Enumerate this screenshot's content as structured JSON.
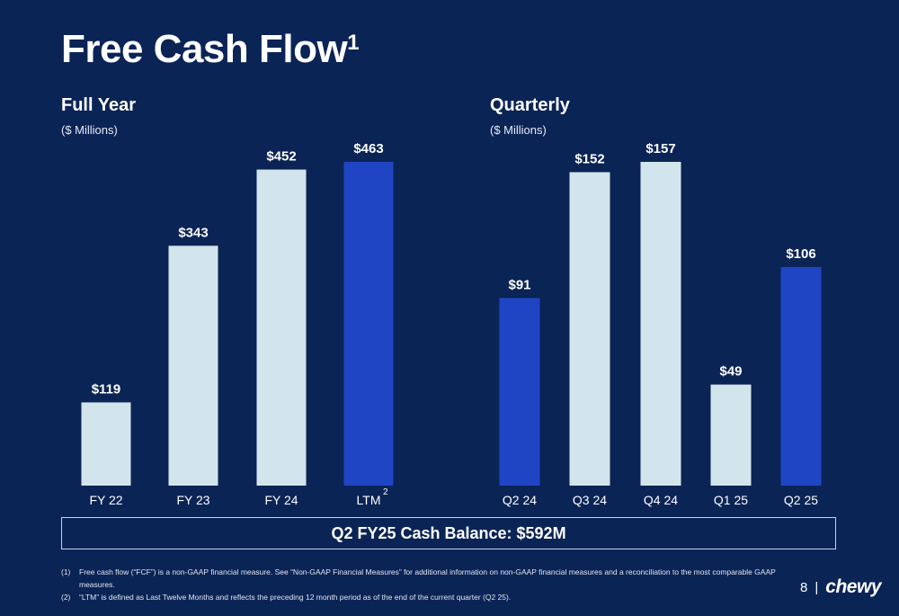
{
  "title": "Free Cash Flow",
  "title_sup": "1",
  "colors": {
    "background": "#0b2456",
    "light_bar": "#d3e5ec",
    "highlight_bar": "#1f45c4"
  },
  "chart_data": [
    {
      "type": "bar",
      "title": "Full Year",
      "subtitle": "($ Millions)",
      "categories": [
        "FY 22",
        "FY 23",
        "FY 24",
        "LTM"
      ],
      "category_superscripts": [
        "",
        "",
        "",
        "2"
      ],
      "values": [
        119,
        343,
        452,
        463
      ],
      "value_labels": [
        "$119",
        "$343",
        "$452",
        "$463"
      ],
      "highlighted": [
        false,
        false,
        false,
        true
      ],
      "ylim": [
        0,
        463
      ],
      "grid": false
    },
    {
      "type": "bar",
      "title": "Quarterly",
      "subtitle": "($ Millions)",
      "categories": [
        "Q2 24",
        "Q3 24",
        "Q4 24",
        "Q1 25",
        "Q2 25"
      ],
      "category_superscripts": [
        "",
        "",
        "",
        "",
        ""
      ],
      "values": [
        91,
        152,
        157,
        49,
        106
      ],
      "value_labels": [
        "$91",
        "$152",
        "$157",
        "$49",
        "$106"
      ],
      "highlighted": [
        true,
        false,
        false,
        false,
        true
      ],
      "ylim": [
        0,
        157
      ],
      "grid": false
    }
  ],
  "cash_balance": "Q2 FY25 Cash Balance: $592M",
  "footnotes": [
    {
      "num": "(1)",
      "text": "Free cash flow (“FCF”) is a non-GAAP financial measure. See “Non-GAAP Financial Measures” for additional information on non-GAAP financial measures and a reconciliation to the most comparable GAAP measures."
    },
    {
      "num": "(2)",
      "text": "“LTM” is defined as Last Twelve Months and reflects the preceding 12 month period as of the end of the current quarter (Q2 25)."
    }
  ],
  "page_number": "8",
  "divider": "|",
  "logo": "chewy"
}
